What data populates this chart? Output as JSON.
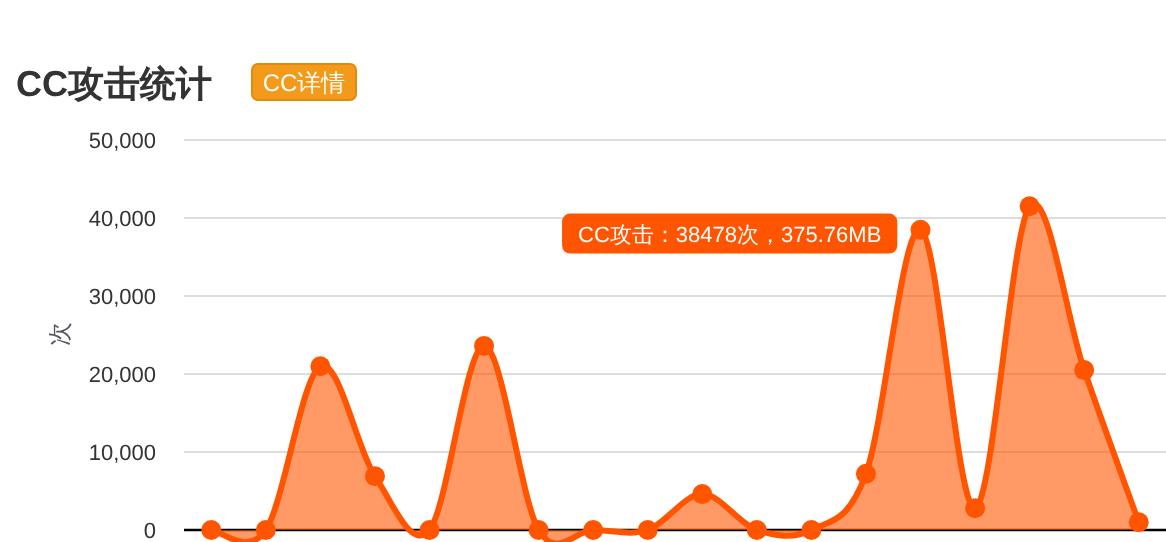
{
  "chart_data": {
    "type": "area",
    "title": "CC攻击统计",
    "subtitle": "CC详情",
    "ylabel": "次",
    "categories": [
      null,
      null,
      null,
      null,
      null,
      null,
      null,
      null,
      null,
      null,
      null,
      null,
      null,
      null,
      null,
      null,
      null,
      null
    ],
    "series": [
      {
        "color": "#ff5500",
        "values": [
          0,
          0,
          21000,
          6900,
          0,
          23600,
          0,
          0,
          0,
          4600,
          0,
          0,
          7200,
          38478,
          2800,
          41500,
          20500,
          1000
        ]
      }
    ],
    "ylim": [
      0,
      50000
    ],
    "yticks": [
      {
        "value": 0,
        "label": "0"
      },
      {
        "value": 10000,
        "label": "10,000"
      },
      {
        "value": 20000,
        "label": "20,000"
      },
      {
        "value": 30000,
        "label": "30,000"
      },
      {
        "value": 40000,
        "label": "40,000"
      },
      {
        "value": 50000,
        "label": "50,000"
      }
    ],
    "grid": "y",
    "marker": "circle",
    "annotations": [
      "CC攻击：38478次，375.76MB"
    ]
  }
}
